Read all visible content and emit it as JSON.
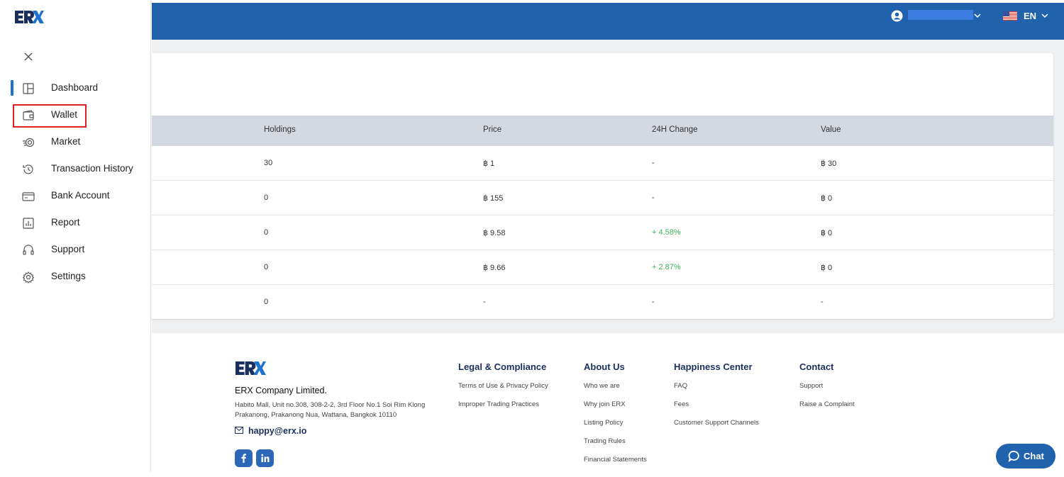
{
  "brand": {
    "logo_text": "ERX",
    "accent": "#2162ad"
  },
  "sidebar": {
    "items": [
      {
        "label": "Dashboard",
        "icon": "dashboard-icon"
      },
      {
        "label": "Wallet",
        "icon": "wallet-icon"
      },
      {
        "label": "Market",
        "icon": "market-icon"
      },
      {
        "label": "Transaction History",
        "icon": "history-icon"
      },
      {
        "label": "Bank Account",
        "icon": "bank-icon"
      },
      {
        "label": "Report",
        "icon": "report-icon"
      },
      {
        "label": "Support",
        "icon": "headset-icon"
      },
      {
        "label": "Settings",
        "icon": "gear-icon"
      }
    ]
  },
  "topbar": {
    "language": "EN"
  },
  "table": {
    "headers": [
      "Holdings",
      "Price",
      "24H Change",
      "Value"
    ],
    "rows": [
      [
        "30",
        "฿ 1",
        "-",
        "฿ 30"
      ],
      [
        "0",
        "฿ 155",
        "-",
        "฿ 0"
      ],
      [
        "0",
        "฿ 9.58",
        "+ 4.58%",
        "฿ 0"
      ],
      [
        "0",
        "฿ 9.66",
        "+ 2.87%",
        "฿ 0"
      ],
      [
        "0",
        "-",
        "-",
        "-"
      ]
    ]
  },
  "footer": {
    "company": "ERX Company Limited.",
    "address_line1": "Habito Mall, Unit no.308, 308-2-2, 3rd Floor No.1 Soi Rim Klong",
    "address_line2": "Prakanong, Prakanong Nua, Wattana, Bangkok 10110",
    "email": "happy@erx.io",
    "columns": [
      {
        "title": "Legal & Compliance",
        "links": [
          "Terms of Use & Privacy Policy",
          "Improper Trading Practices"
        ]
      },
      {
        "title": "About Us",
        "links": [
          "Who we are",
          "Why join ERX",
          "Listing Policy",
          "Trading Rules",
          "Financial Statements"
        ]
      },
      {
        "title": "Happiness Center",
        "links": [
          "FAQ",
          "Fees",
          "Customer Support Channels"
        ]
      },
      {
        "title": "Contact",
        "links": [
          "Support",
          "Raise a Complaint"
        ]
      }
    ]
  },
  "chat": {
    "label": "Chat"
  }
}
